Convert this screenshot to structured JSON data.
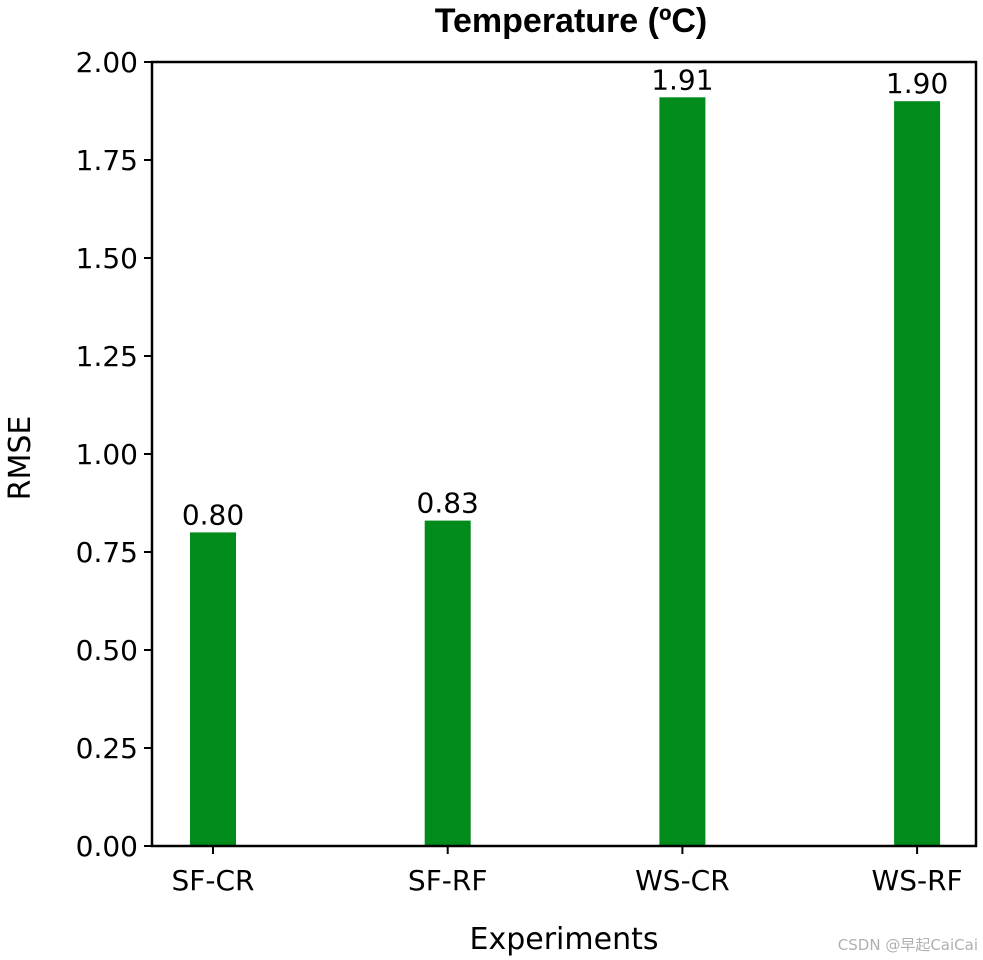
{
  "chart_data": {
    "type": "bar",
    "title": "Temperature (ºC)",
    "xlabel": "Experiments",
    "ylabel": "RMSE",
    "categories": [
      "SF-CR",
      "SF-RF",
      "WS-CR",
      "WS-RF"
    ],
    "values": [
      0.8,
      0.83,
      1.91,
      1.9
    ],
    "data_labels": [
      "0.80",
      "0.83",
      "1.91",
      "1.90"
    ],
    "ylim": [
      0,
      2.0
    ],
    "yticks": [
      0.0,
      0.25,
      0.5,
      0.75,
      1.0,
      1.25,
      1.5,
      1.75,
      2.0
    ],
    "ytick_labels": [
      "0.00",
      "0.25",
      "0.50",
      "0.75",
      "1.00",
      "1.25",
      "1.50",
      "1.75",
      "2.00"
    ],
    "bar_color": "#008b1a",
    "grid": false,
    "legend": "none"
  },
  "watermark": "CSDN @早起CaiCai"
}
